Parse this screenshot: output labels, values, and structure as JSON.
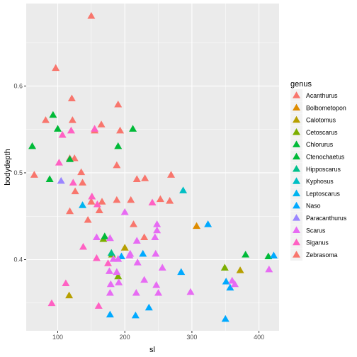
{
  "chart_data": {
    "type": "scatter",
    "xlabel": "sl",
    "ylabel": "bodydepth",
    "xlim": [
      53,
      430
    ],
    "ylim": [
      0.318,
      0.695
    ],
    "x_ticks": [
      100,
      200,
      300,
      400
    ],
    "y_ticks": [
      0.4,
      0.5,
      0.6
    ],
    "y_tick_labels": [
      "0.4",
      "0.5",
      "0.6"
    ],
    "grid": true,
    "legend": {
      "title": "genus",
      "placement": "right",
      "entries": [
        {
          "name": "Acanthurus",
          "color": "#F8766D"
        },
        {
          "name": "Bolbometopon",
          "color": "#DE8C00"
        },
        {
          "name": "Calotomus",
          "color": "#B79F00"
        },
        {
          "name": "Cetoscarus",
          "color": "#7CAE00"
        },
        {
          "name": "Chlorurus",
          "color": "#00BA38"
        },
        {
          "name": "Ctenochaetus",
          "color": "#00BA38"
        },
        {
          "name": "Hipposcarus",
          "color": "#00C08B"
        },
        {
          "name": "Kyphosus",
          "color": "#00BFC4"
        },
        {
          "name": "Leptoscarus",
          "color": "#00B4F0"
        },
        {
          "name": "Naso",
          "color": "#00A9FF"
        },
        {
          "name": "Paracanthurus",
          "color": "#9A85FF"
        },
        {
          "name": "Scarus",
          "color": "#E76BF3"
        },
        {
          "name": "Siganus",
          "color": "#FF61C3"
        },
        {
          "name": "Zebrasoma",
          "color": "#F8766D"
        }
      ]
    },
    "series": [
      {
        "name": "Acanthurus",
        "color": "#F8766D",
        "points": [
          [
            150,
            0.68
          ],
          [
            97,
            0.62
          ],
          [
            190,
            0.578
          ],
          [
            121,
            0.585
          ],
          [
            82,
            0.56
          ],
          [
            122,
            0.56
          ],
          [
            165,
            0.555
          ],
          [
            193,
            0.548
          ],
          [
            155,
            0.548
          ],
          [
            65,
            0.497
          ],
          [
            188,
            0.508
          ],
          [
            218,
            0.492
          ],
          [
            230,
            0.493
          ],
          [
            269,
            0.497
          ],
          [
            135,
            0.5
          ],
          [
            118,
            0.516
          ],
          [
            125,
            0.516
          ],
          [
            137,
            0.488
          ],
          [
            126,
            0.478
          ],
          [
            150,
            0.466
          ],
          [
            166,
            0.466
          ],
          [
            188,
            0.468
          ],
          [
            209,
            0.468
          ],
          [
            253,
            0.469
          ],
          [
            267,
            0.467
          ],
          [
            118,
            0.455
          ],
          [
            162,
            0.456
          ],
          [
            213,
            0.44
          ],
          [
            145,
            0.445
          ],
          [
            229,
            0.425
          ]
        ]
      },
      {
        "name": "Bolbometopon",
        "color": "#DE8C00",
        "points": [
          [
            307,
            0.438
          ]
        ]
      },
      {
        "name": "Calotomus",
        "color": "#B79F00",
        "points": [
          [
            200,
            0.413
          ],
          [
            117,
            0.358
          ],
          [
            372,
            0.387
          ]
        ]
      },
      {
        "name": "Cetoscarus",
        "color": "#7CAE00",
        "points": [
          [
            168,
            0.423
          ],
          [
            181,
            0.405
          ],
          [
            190,
            0.38
          ],
          [
            349,
            0.39
          ]
        ]
      },
      {
        "name": "Chlorurus",
        "color": "#00BA38",
        "points": [
          [
            190,
            0.53
          ],
          [
            93,
            0.566
          ],
          [
            88,
            0.492
          ],
          [
            170,
            0.426
          ],
          [
            414,
            0.403
          ]
        ]
      },
      {
        "name": "Ctenochaetus",
        "color": "#00BA38",
        "points": [
          [
            62,
            0.53
          ],
          [
            100,
            0.55
          ],
          [
            118,
            0.515
          ],
          [
            212,
            0.55
          ],
          [
            380,
            0.405
          ]
        ]
      },
      {
        "name": "Hipposcarus",
        "color": "#00C08B",
        "points": [
          [
            180,
            0.407
          ]
        ]
      },
      {
        "name": "Kyphosus",
        "color": "#00BFC4",
        "points": [
          [
            287,
            0.479
          ]
        ]
      },
      {
        "name": "Leptoscarus",
        "color": "#00B4F0",
        "points": [
          [
            137,
            0.462
          ]
        ]
      },
      {
        "name": "Naso",
        "color": "#00A9FF",
        "points": [
          [
            324,
            0.44
          ],
          [
            284,
            0.385
          ],
          [
            195,
            0.403
          ],
          [
            227,
            0.406
          ],
          [
            422,
            0.404
          ],
          [
            351,
            0.374
          ],
          [
            357,
            0.367
          ],
          [
            178,
            0.336
          ],
          [
            216,
            0.335
          ],
          [
            236,
            0.344
          ],
          [
            350,
            0.331
          ]
        ]
      },
      {
        "name": "Paracanthurus",
        "color": "#9A85FF",
        "points": [
          [
            105,
            0.49
          ]
        ]
      },
      {
        "name": "Scarus",
        "color": "#E76BF3",
        "points": [
          [
            200,
            0.454
          ],
          [
            158,
            0.425
          ],
          [
            178,
            0.424
          ],
          [
            248,
            0.44
          ],
          [
            248,
            0.433
          ],
          [
            218,
            0.421
          ],
          [
            245,
            0.425
          ],
          [
            183,
            0.4
          ],
          [
            190,
            0.4
          ],
          [
            207,
            0.404
          ],
          [
            219,
            0.396
          ],
          [
            256,
            0.39
          ],
          [
            246,
            0.406
          ],
          [
            208,
            0.406
          ],
          [
            177,
            0.386
          ],
          [
            188,
            0.385
          ],
          [
            229,
            0.376
          ],
          [
            247,
            0.37
          ],
          [
            179,
            0.371
          ],
          [
            191,
            0.373
          ],
          [
            178,
            0.361
          ],
          [
            217,
            0.361
          ],
          [
            250,
            0.361
          ],
          [
            298,
            0.362
          ],
          [
            360,
            0.375
          ],
          [
            364,
            0.371
          ],
          [
            415,
            0.388
          ]
        ]
      },
      {
        "name": "Siganus",
        "color": "#FF61C3",
        "points": [
          [
            120,
            0.548
          ],
          [
            107,
            0.543
          ],
          [
            155,
            0.55
          ],
          [
            102,
            0.511
          ],
          [
            123,
            0.488
          ],
          [
            151,
            0.472
          ],
          [
            159,
            0.463
          ],
          [
            138,
            0.414
          ],
          [
            158,
            0.401
          ],
          [
            175,
            0.395
          ],
          [
            112,
            0.372
          ],
          [
            91,
            0.349
          ],
          [
            161,
            0.346
          ],
          [
            241,
            0.465
          ]
        ]
      }
    ]
  }
}
